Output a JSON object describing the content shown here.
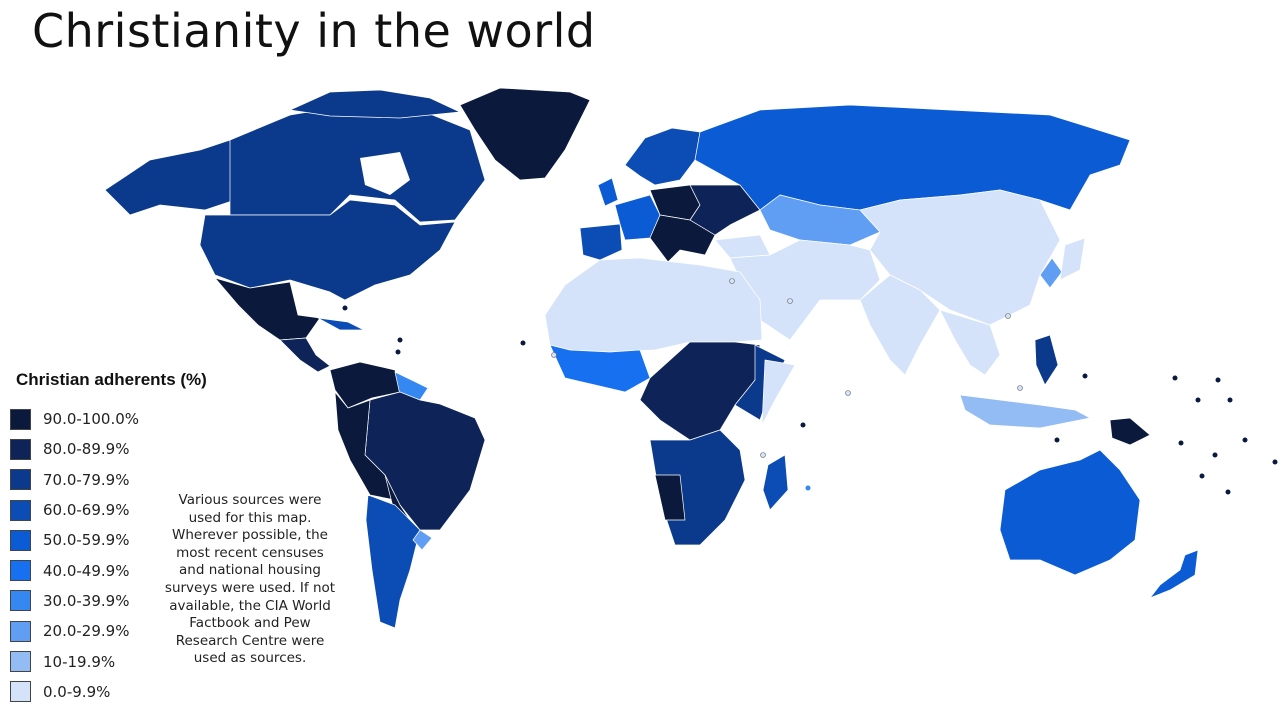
{
  "title": "Christianity in the world",
  "legend": {
    "title": "Christian adherents (%)",
    "items": [
      {
        "label": "90.0-100.0%",
        "color": "#0b1a3c"
      },
      {
        "label": "80.0-89.9%",
        "color": "#0e2459"
      },
      {
        "label": "70.0-79.9%",
        "color": "#0b3a8c"
      },
      {
        "label": "60.0-69.9%",
        "color": "#0b4cb5"
      },
      {
        "label": "50.0-59.9%",
        "color": "#0a5bd4"
      },
      {
        "label": "40.0-49.9%",
        "color": "#1670f0"
      },
      {
        "label": "30.0-39.9%",
        "color": "#3588f2"
      },
      {
        "label": "20.0-29.9%",
        "color": "#5f9ef2"
      },
      {
        "label": "10-19.9%",
        "color": "#93bbf4"
      },
      {
        "label": "0.0-9.9%",
        "color": "#d4e3fa"
      }
    ]
  },
  "note_lines": [
    "Various sources were",
    "used for this map.",
    "Wherever possible, the",
    "most recent censuses",
    "and national housing",
    "surveys were used. If not",
    "available, the CIA World",
    "Factbook and Pew",
    "Research Centre were",
    "used as sources."
  ]
}
